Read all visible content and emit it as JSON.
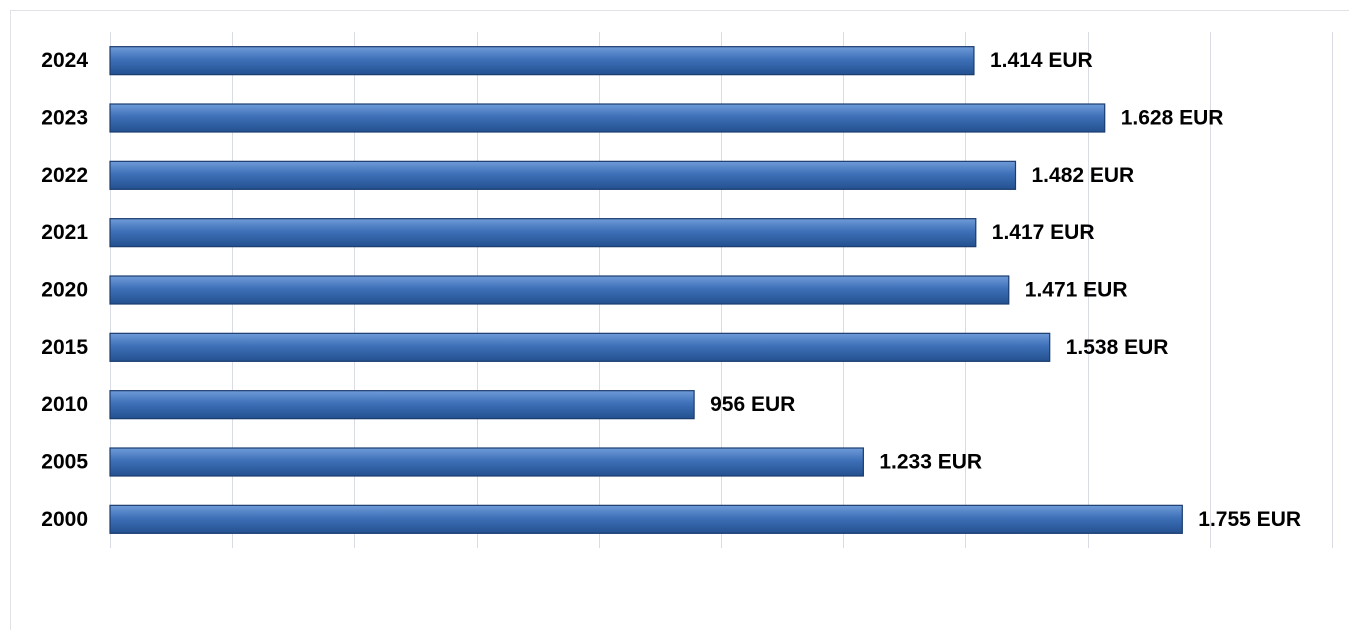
{
  "chart_data": {
    "type": "bar",
    "orientation": "horizontal",
    "categories": [
      "2024",
      "2023",
      "2022",
      "2021",
      "2020",
      "2015",
      "2010",
      "2005",
      "2000"
    ],
    "values": [
      1414,
      1628,
      1482,
      1417,
      1471,
      1538,
      956,
      1233,
      1755
    ],
    "value_labels": [
      "1.414 EUR",
      "1.628 EUR",
      "1.482 EUR",
      "1.417 EUR",
      "1.471 EUR",
      "1.538 EUR",
      "956 EUR",
      "1.233 EUR",
      "1.755 EUR"
    ],
    "color": "#3465ad",
    "xlim": [
      0,
      2000
    ],
    "xticks": [
      0,
      200,
      400,
      600,
      800,
      1000,
      1200,
      1400,
      1600,
      1800,
      2000
    ],
    "grid": true
  }
}
